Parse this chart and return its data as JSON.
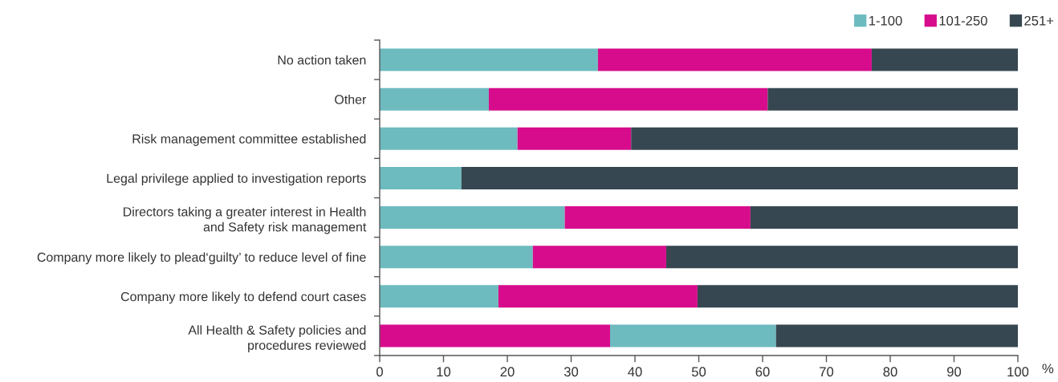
{
  "chart_data": {
    "type": "bar",
    "orientation": "horizontal",
    "categories": [
      "No action taken",
      "Other",
      "Risk management committee established",
      "Legal privilege applied to investigation reports",
      "Directors taking a greater interest in Health\nand Safety risk management",
      "Company more likely to plead‘guilty’ to reduce level of fine",
      "Company more likely to defend court cases",
      "All Health & Safety policies and\nprocedures reviewed"
    ],
    "series": [
      {
        "name": "1-100",
        "color": "#6dbbbf",
        "values": [
          34.2,
          17.1,
          21.6,
          12.8,
          29.0,
          24.0,
          18.6,
          26.0
        ],
        "base": [
          0,
          0,
          0,
          0,
          0,
          0,
          0,
          36.1
        ]
      },
      {
        "name": "101-250",
        "color": "#d70c8c",
        "values": [
          42.9,
          43.7,
          17.8,
          null,
          29.1,
          20.9,
          31.2,
          36.1
        ],
        "base": [
          34.2,
          17.1,
          21.6,
          null,
          29.0,
          24.0,
          18.6,
          0
        ]
      },
      {
        "name": "251+",
        "color": "#364751",
        "values": [
          22.9,
          39.2,
          60.6,
          87.2,
          41.9,
          55.1,
          50.2,
          37.9
        ],
        "base": [
          77.1,
          60.8,
          39.4,
          12.8,
          58.1,
          44.9,
          49.8,
          62.1
        ]
      }
    ],
    "xlim": [
      0,
      100
    ],
    "xticks": [
      0,
      10,
      20,
      30,
      40,
      50,
      60,
      70,
      80,
      90,
      100
    ],
    "xlabel": "%",
    "legend": "top right"
  }
}
